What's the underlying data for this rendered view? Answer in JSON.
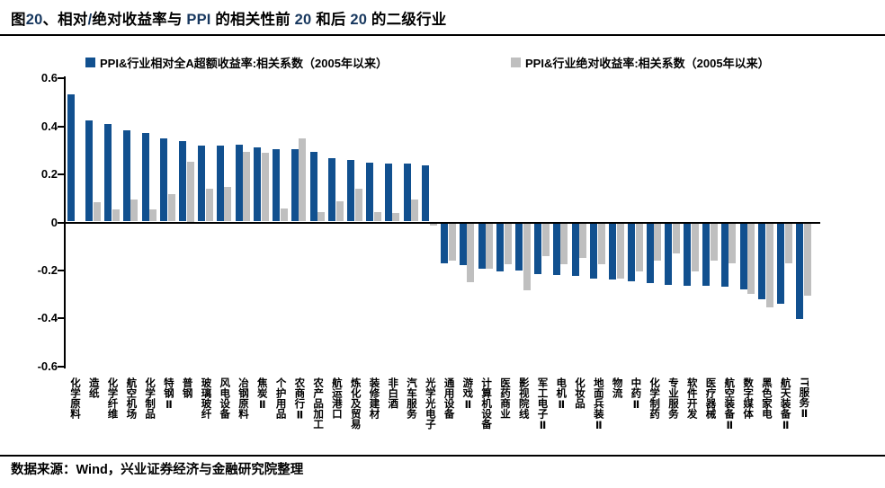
{
  "header": {
    "title_text": "图20、相对/绝对收益率与 PPI 的相关性前 20 和后 20 的二级行业",
    "title_segments": [
      {
        "text": "图",
        "color": "#000000"
      },
      {
        "text": "20",
        "color": "#17375E"
      },
      {
        "text": "、相对",
        "color": "#000000"
      },
      {
        "text": "/",
        "color": "#17375E"
      },
      {
        "text": "绝对收益率与 ",
        "color": "#000000"
      },
      {
        "text": "PPI",
        "color": "#17375E"
      },
      {
        "text": " 的相关性前 ",
        "color": "#000000"
      },
      {
        "text": "20",
        "color": "#17375E"
      },
      {
        "text": " 和后 ",
        "color": "#000000"
      },
      {
        "text": "20",
        "color": "#17375E"
      },
      {
        "text": " 的二级行业",
        "color": "#000000"
      }
    ]
  },
  "legend": [
    {
      "label": "PPI&行业相对全A超额收益率:相关系数（2005年以来）",
      "color": "#11508F"
    },
    {
      "label": "PPI&行业绝对收益率:相关系数（2005年以来）",
      "color": "#BFBFBF"
    }
  ],
  "chart_data": {
    "type": "bar",
    "title": "",
    "xlabel": "",
    "ylabel": "",
    "ylim": [
      -0.6,
      0.6
    ],
    "yticks": [
      0.6,
      0.4,
      0.2,
      0,
      -0.2,
      -0.4,
      -0.6
    ],
    "ytick_labels": [
      "0.6",
      "0.4",
      "0.2",
      "0",
      "-0.2",
      "-0.4",
      "-0.6"
    ],
    "grid": false,
    "legend_position": "top",
    "categories": [
      "化学原料",
      "造纸",
      "化学纤维",
      "航空机场",
      "化学制品",
      "特钢Ⅱ",
      "普钢",
      "玻璃玻纤",
      "风电设备",
      "冶钢原料",
      "焦炭Ⅱ",
      "个护用品",
      "农商行Ⅱ",
      "农产品加工",
      "航运港口",
      "炼化及贸易",
      "装修建材",
      "非白酒",
      "汽车服务",
      "光学光电子",
      "通用设备",
      "游戏Ⅱ",
      "计算机设备",
      "医药商业",
      "影视院线",
      "军工电子Ⅱ",
      "电机Ⅱ",
      "化妆品",
      "地面兵装Ⅱ",
      "物流",
      "中药Ⅱ",
      "化学制药",
      "专业服务",
      "软件开发",
      "医疗器械",
      "航空装备Ⅱ",
      "数字媒体",
      "黑色家电",
      "航天装备Ⅱ",
      "IT服务Ⅱ"
    ],
    "series": [
      {
        "name": "PPI&行业相对全A超额收益率:相关系数（2005年以来）",
        "color": "#11508F",
        "values": [
          0.53,
          0.42,
          0.405,
          0.38,
          0.37,
          0.345,
          0.335,
          0.315,
          0.315,
          0.32,
          0.31,
          0.3,
          0.3,
          0.29,
          0.265,
          0.255,
          0.245,
          0.24,
          0.24,
          0.235,
          -0.165,
          -0.175,
          -0.19,
          -0.2,
          -0.195,
          -0.21,
          -0.215,
          -0.22,
          -0.23,
          -0.235,
          -0.24,
          -0.25,
          -0.255,
          -0.26,
          -0.26,
          -0.265,
          -0.275,
          -0.315,
          -0.335,
          -0.4
        ]
      },
      {
        "name": "PPI&行业绝对收益率:相关系数（2005年以来）",
        "color": "#BFBFBF",
        "values": [
          0.0,
          0.08,
          0.05,
          0.09,
          0.05,
          0.115,
          0.25,
          0.135,
          0.145,
          0.29,
          0.285,
          0.055,
          0.345,
          0.04,
          0.085,
          0.135,
          0.04,
          0.035,
          0.09,
          -0.01,
          -0.155,
          -0.245,
          -0.19,
          -0.17,
          -0.28,
          -0.135,
          -0.17,
          -0.145,
          -0.17,
          -0.23,
          -0.2,
          -0.155,
          -0.125,
          -0.2,
          -0.155,
          -0.165,
          -0.295,
          -0.35,
          -0.165,
          -0.3
        ]
      }
    ]
  },
  "footer": {
    "source_text": "数据来源：Wind，兴业证券经济与金融研究院整理"
  }
}
